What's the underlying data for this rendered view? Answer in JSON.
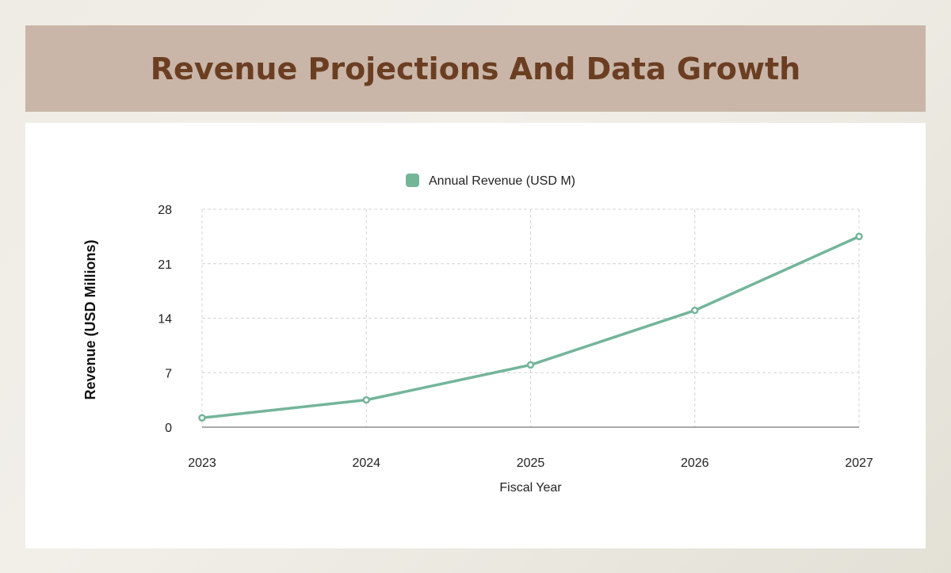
{
  "header": {
    "title": "Revenue Projections And Data Growth"
  },
  "colors": {
    "banner_bg": "#c9b6a9",
    "title_text": "#6b3e22",
    "series_line": "#74b59a",
    "grid": "#d4d4d4",
    "axis": "#555555"
  },
  "chart_data": {
    "type": "line",
    "categories": [
      "2023",
      "2024",
      "2025",
      "2026",
      "2027"
    ],
    "series": [
      {
        "name": "Annual Revenue (USD M)",
        "values": [
          1.2,
          3.5,
          8.0,
          15.0,
          24.5
        ]
      }
    ],
    "xlabel": "Fiscal Year",
    "ylabel": "Revenue (USD Millions)",
    "ylim": [
      0,
      28
    ],
    "yticks": [
      "0",
      "7",
      "14",
      "21",
      "28"
    ],
    "grid": true,
    "legend_position": "top-center"
  }
}
